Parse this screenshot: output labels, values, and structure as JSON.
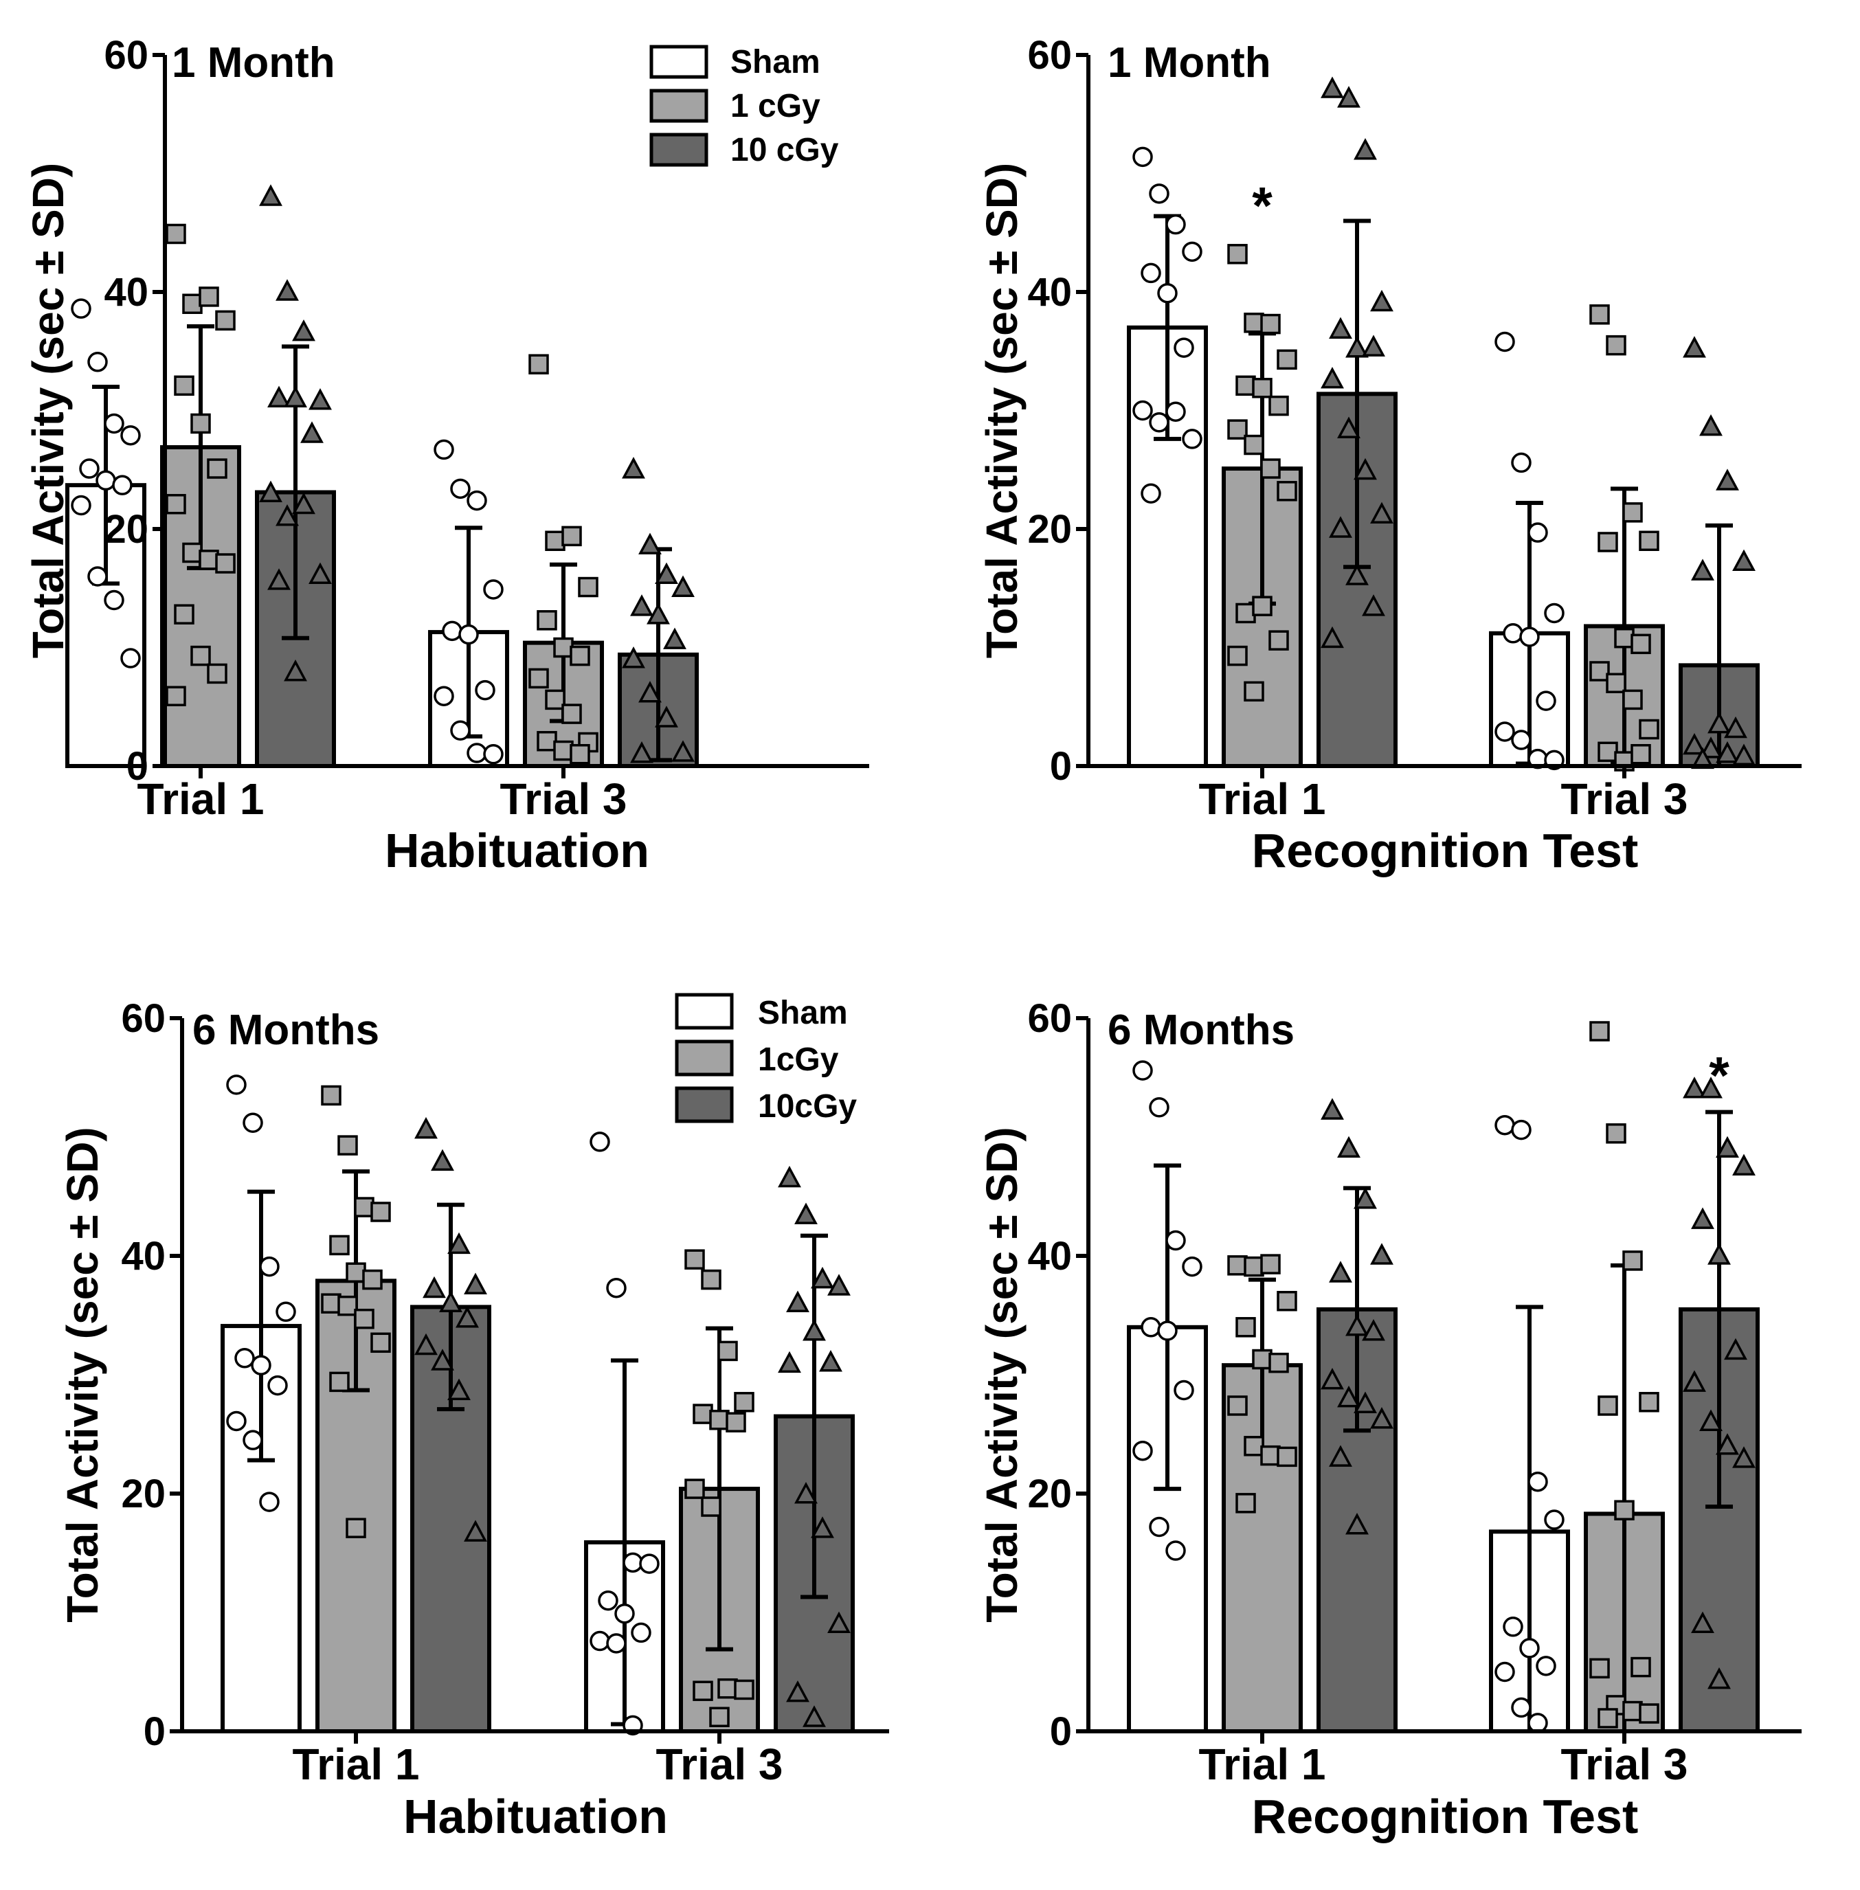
{
  "colors": {
    "sham": "#ffffff",
    "1cgy": "#a3a3a3",
    "10cgy": "#666666",
    "stroke": "#000000"
  },
  "chart_data": [
    {
      "type": "bar",
      "title": "1 Month",
      "xlabel": "Habituation",
      "ylabel": "Total Activity (sec ± SD)",
      "ylim": [
        0,
        60
      ],
      "yticks": [
        "0",
        "20",
        "40",
        "60"
      ],
      "categories": [
        "Trial 1",
        "Trial 3"
      ],
      "legend": {
        "position": "top-right",
        "entries": [
          "Sham",
          "1 cGy",
          "10 cGy"
        ]
      },
      "series": [
        {
          "name": "Sham",
          "values": [
            23.7,
            11.3
          ],
          "sd": [
            8.3,
            8.8
          ],
          "points": [
            [
              38.6,
              34.1,
              28.9,
              27.9,
              25.1,
              24.1,
              23.7,
              22.0,
              16.0,
              14.0,
              9.1
            ],
            [
              26.7,
              23.4,
              22.4,
              14.9,
              11.4,
              11.1,
              6.4,
              5.9,
              3.0,
              1.1,
              1.0
            ]
          ]
        },
        {
          "name": "1 cGy",
          "values": [
            26.9,
            10.4
          ],
          "sd": [
            10.2,
            6.6
          ],
          "points": [
            [
              44.9,
              39.0,
              39.6,
              37.6,
              32.1,
              28.9,
              25.1,
              22.1,
              18.0,
              17.4,
              17.1,
              12.8,
              9.3,
              7.8,
              5.9
            ],
            [
              33.9,
              19.0,
              19.4,
              15.1,
              12.3,
              10.0,
              9.3,
              7.4,
              5.6,
              4.4,
              2.0,
              2.1,
              1.3,
              1.0
            ]
          ]
        },
        {
          "name": "10 cGy",
          "values": [
            23.1,
            9.4
          ],
          "sd": [
            12.3,
            8.9
          ],
          "points": [
            [
              48.0,
              40.0,
              36.6,
              30.8,
              31.0,
              31.0,
              28.0,
              23.0,
              21.0,
              22.0,
              16.1,
              15.6,
              7.9
            ],
            [
              25.0,
              18.6,
              16.1,
              15.0,
              13.4,
              12.7,
              10.6,
              9.0,
              6.1,
              4.0,
              1.1,
              1.0
            ]
          ]
        }
      ],
      "annotations": []
    },
    {
      "type": "bar",
      "title": "1 Month",
      "xlabel": "Recognition Test",
      "ylabel": "Total Activity (sec ± SD)",
      "ylim": [
        0,
        60
      ],
      "yticks": [
        "0",
        "20",
        "40",
        "60"
      ],
      "categories": [
        "Trial 1",
        "Trial 3"
      ],
      "legend": null,
      "series": [
        {
          "name": "Sham",
          "values": [
            37.0,
            11.2
          ],
          "sd": [
            9.4,
            11.0
          ],
          "points": [
            [
              51.4,
              48.3,
              45.7,
              43.4,
              41.6,
              39.9,
              35.3,
              30.0,
              29.0,
              29.9,
              27.6,
              23.0
            ],
            [
              35.8,
              25.6,
              19.7,
              12.9,
              11.2,
              10.9,
              5.5,
              2.9,
              2.2,
              0.6,
              0.5
            ]
          ]
        },
        {
          "name": "1 cGy",
          "values": [
            25.1,
            11.8
          ],
          "sd": [
            11.4,
            11.6
          ],
          "points": [
            [
              43.2,
              37.4,
              37.3,
              34.3,
              32.1,
              31.9,
              30.4,
              28.4,
              27.1,
              25.1,
              23.2,
              12.9,
              13.5,
              10.6,
              9.3,
              6.3
            ],
            [
              38.1,
              35.5,
              21.4,
              19.0,
              18.9,
              10.8,
              10.3,
              8.0,
              7.0,
              5.6,
              3.1,
              1.2,
              0.4,
              1.0
            ]
          ]
        },
        {
          "name": "10 cGy",
          "values": [
            31.4,
            8.5
          ],
          "sd": [
            14.6,
            11.8
          ],
          "points": [
            [
              57.1,
              56.3,
              51.9,
              39.1,
              36.8,
              35.2,
              35.3,
              32.6,
              28.4,
              24.9,
              21.2,
              20.0,
              16.0,
              13.4,
              10.7
            ],
            [
              35.2,
              28.6,
              24.0,
              17.2,
              16.4,
              3.5,
              3.1,
              1.7,
              1.4,
              1.0,
              0.8,
              0.5
            ]
          ]
        }
      ],
      "annotations": [
        {
          "text": "*",
          "category": "Trial 1",
          "series": "1 cGy",
          "y": 47.5
        }
      ]
    },
    {
      "type": "bar",
      "title": "6 Months",
      "xlabel": "Habituation",
      "ylabel": "Total Activity (sec ± SD)",
      "ylim": [
        0,
        60
      ],
      "yticks": [
        "0",
        "20",
        "40",
        "60"
      ],
      "categories": [
        "Trial 1",
        "Trial 3"
      ],
      "legend": {
        "position": "top-right",
        "entries": [
          "Sham",
          "1cGy",
          "10cGy"
        ]
      },
      "series": [
        {
          "name": "Sham",
          "values": [
            34.1,
            15.9
          ],
          "sd": [
            11.3,
            15.3
          ],
          "points": [
            [
              54.4,
              51.2,
              39.1,
              35.3,
              31.4,
              30.8,
              29.1,
              26.1,
              24.5,
              19.3
            ],
            [
              49.6,
              37.3,
              14.2,
              14.1,
              11.0,
              9.9,
              8.3,
              7.6,
              7.4,
              0.5
            ]
          ]
        },
        {
          "name": "1cGy",
          "values": [
            37.9,
            20.4
          ],
          "sd": [
            9.2,
            13.5
          ],
          "points": [
            [
              53.5,
              49.3,
              44.1,
              43.7,
              40.9,
              38.6,
              38.0,
              36.0,
              35.8,
              34.7,
              32.7,
              29.4,
              17.1
            ],
            [
              39.7,
              38.0,
              32.0,
              27.7,
              26.7,
              26.2,
              26.0,
              20.4,
              18.9,
              3.6,
              3.5,
              3.4,
              1.2
            ]
          ]
        },
        {
          "name": "10cGy",
          "values": [
            35.7,
            26.5
          ],
          "sd": [
            8.6,
            15.2
          ],
          "points": [
            [
              50.6,
              47.9,
              40.9,
              37.5,
              37.2,
              36.0,
              34.7,
              32.4,
              31.1,
              28.6,
              16.7
            ],
            [
              46.5,
              43.4,
              38.0,
              37.4,
              36.0,
              33.6,
              31.0,
              30.9,
              19.9,
              17.0,
              9.0,
              3.2,
              1.1
            ]
          ]
        }
      ],
      "annotations": []
    },
    {
      "type": "bar",
      "title": "6 Months",
      "xlabel": "Recognition Test",
      "ylabel": "Total Activity (sec ± SD)",
      "ylim": [
        0,
        60
      ],
      "yticks": [
        "0",
        "20",
        "40",
        "60"
      ],
      "categories": [
        "Trial 1",
        "Trial 3"
      ],
      "legend": null,
      "series": [
        {
          "name": "Sham",
          "values": [
            34.0,
            16.8
          ],
          "sd": [
            13.6,
            18.9
          ],
          "points": [
            [
              55.6,
              52.5,
              41.3,
              39.1,
              34.0,
              33.7,
              28.7,
              23.6,
              17.2,
              15.2
            ],
            [
              51.0,
              50.6,
              21.0,
              17.8,
              8.8,
              7.0,
              5.5,
              5.0,
              2.0,
              0.7
            ]
          ]
        },
        {
          "name": "1cGy",
          "values": [
            30.8,
            18.3
          ],
          "sd": [
            7.2,
            20.9
          ],
          "points": [
            [
              39.2,
              39.1,
              39.3,
              36.2,
              34.0,
              31.3,
              31.0,
              27.4,
              24.0,
              23.2,
              23.1,
              19.2
            ],
            [
              58.9,
              50.3,
              39.6,
              27.7,
              27.4,
              18.6,
              5.4,
              5.3,
              2.2,
              1.7,
              1.5,
              1.1
            ]
          ]
        },
        {
          "name": "10cGy",
          "values": [
            35.5,
            35.5
          ],
          "sd": [
            10.2,
            16.6
          ],
          "points": [
            [
              52.2,
              49.0,
              44.7,
              40.0,
              38.5,
              34.0,
              33.6,
              29.5,
              28.0,
              27.5,
              26.2,
              23.0,
              17.3
            ],
            [
              54.0,
              54.0,
              49.0,
              47.5,
              43.0,
              40.0,
              32.0,
              29.3,
              26.0,
              24.0,
              22.9,
              9.0,
              4.3
            ]
          ]
        }
      ],
      "annotations": [
        {
          "text": "*",
          "category": "Trial 3",
          "series": "10cGy",
          "y": 55.4
        }
      ]
    }
  ]
}
